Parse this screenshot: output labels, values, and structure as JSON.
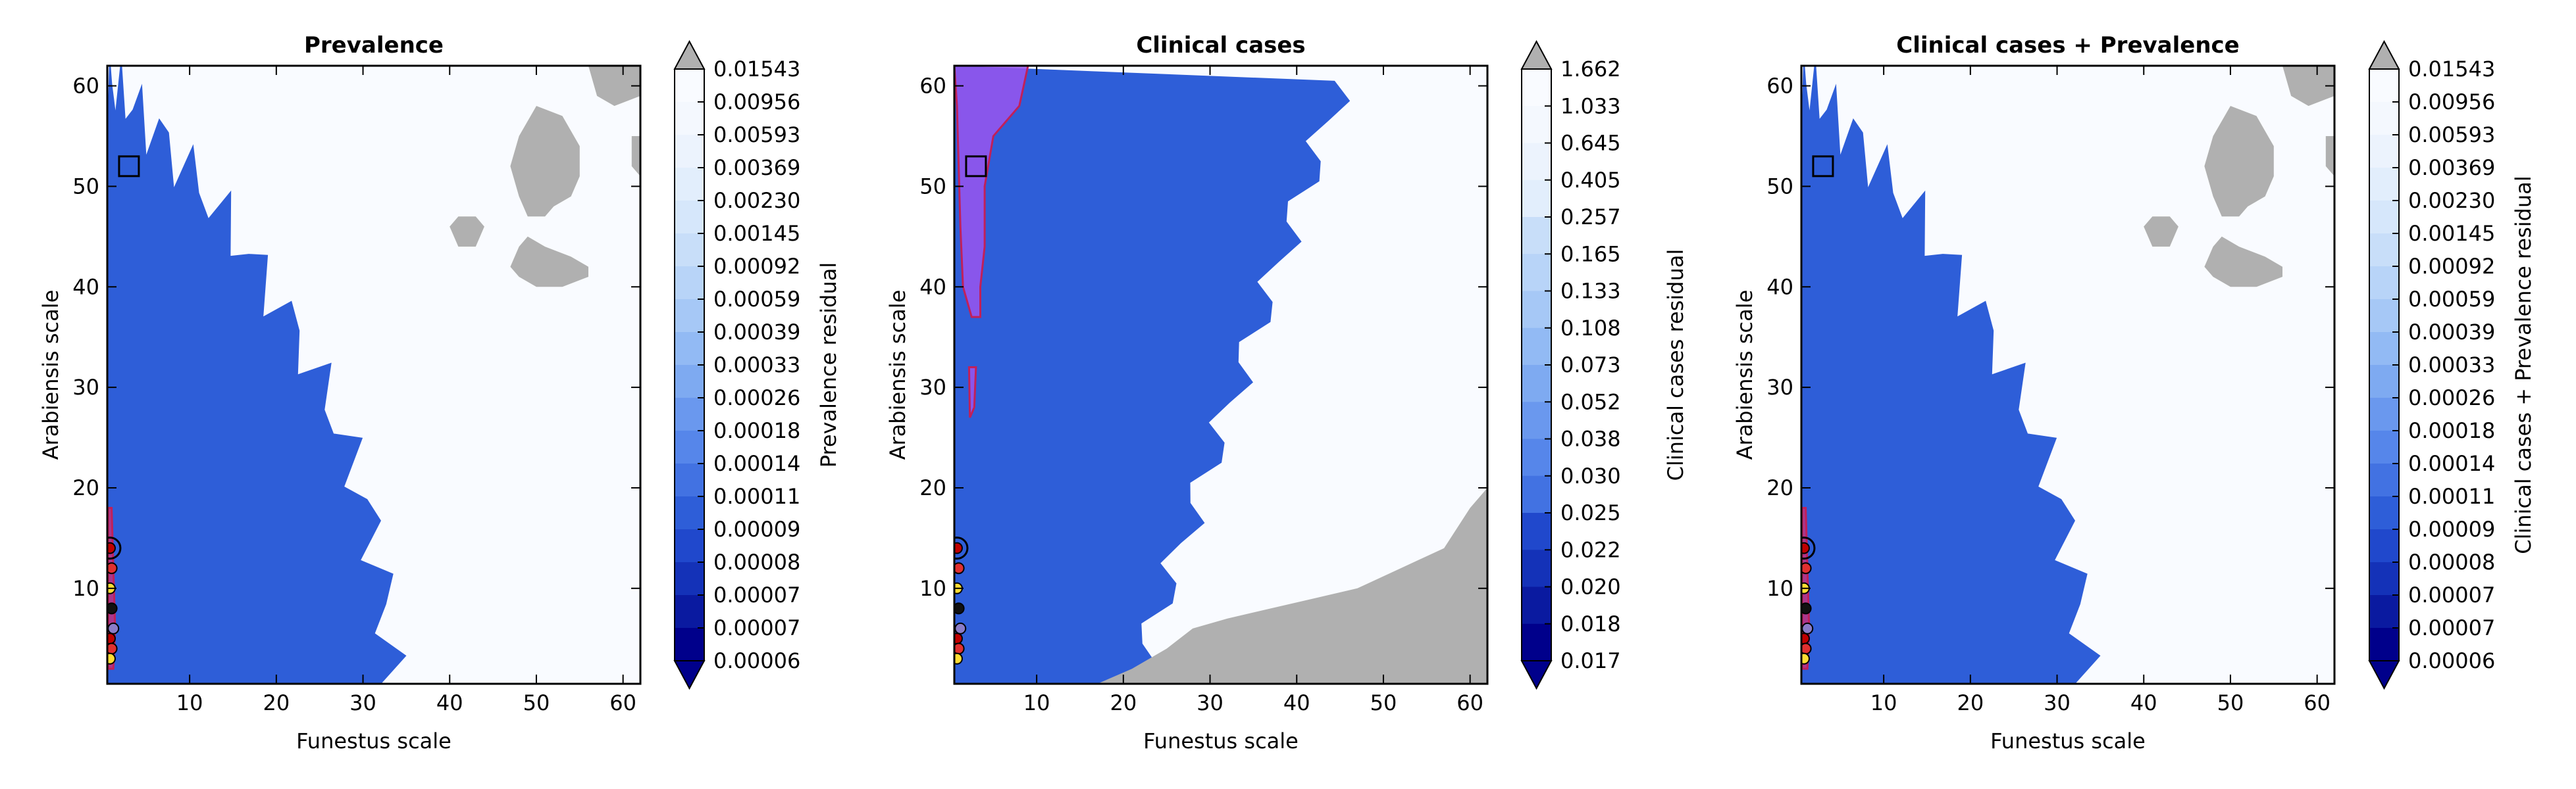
{
  "chart_data": [
    {
      "type": "contour",
      "title": "Prevalence",
      "xlabel": "Funestus scale",
      "ylabel": "Arabiensis scale",
      "xlim": [
        0.5,
        62
      ],
      "ylim": [
        0.5,
        62
      ],
      "xticks": [
        10,
        20,
        30,
        40,
        50,
        60
      ],
      "yticks": [
        10,
        20,
        30,
        40,
        50,
        60
      ],
      "colorbar": {
        "label": "Prevalence residual",
        "ticks": [
          "0.01543",
          "0.00956",
          "0.00593",
          "0.00369",
          "0.00230",
          "0.00145",
          "0.00092",
          "0.00059",
          "0.00039",
          "0.00033",
          "0.00026",
          "0.00018",
          "0.00014",
          "0.00011",
          "0.00009",
          "0.00008",
          "0.00007",
          "0.00007",
          "0.00006"
        ]
      },
      "marker_square": [
        3,
        52
      ],
      "over_max_regions": [
        {
          "color": "#b0b0b0",
          "points": [
            [
              50,
              58
            ],
            [
              53,
              57
            ],
            [
              55,
              54
            ],
            [
              55,
              51
            ],
            [
              54,
              49
            ],
            [
              52,
              48
            ],
            [
              51,
              47
            ],
            [
              49,
              47
            ],
            [
              48,
              49
            ],
            [
              47,
              52
            ],
            [
              48,
              55
            ]
          ]
        },
        {
          "color": "#b0b0b0",
          "points": [
            [
              49,
              45
            ],
            [
              51,
              44
            ],
            [
              54,
              43
            ],
            [
              56,
              42
            ],
            [
              56,
              41
            ],
            [
              53,
              40
            ],
            [
              50,
              40
            ],
            [
              48,
              41
            ],
            [
              47,
              42
            ],
            [
              48,
              44
            ]
          ]
        },
        {
          "color": "#b0b0b0",
          "points": [
            [
              40,
              46
            ],
            [
              41,
              47
            ],
            [
              43,
              47
            ],
            [
              44,
              46
            ],
            [
              43,
              44
            ],
            [
              41,
              44
            ]
          ]
        },
        {
          "color": "#b0b0b0",
          "points": [
            [
              56,
              62
            ],
            [
              62,
              62
            ],
            [
              62,
              59
            ],
            [
              59,
              58
            ],
            [
              57,
              59
            ]
          ]
        },
        {
          "color": "#b0b0b0",
          "points": [
            [
              61,
              55
            ],
            [
              62,
              55
            ],
            [
              62,
              51
            ],
            [
              61,
              52
            ]
          ]
        }
      ],
      "highlight_regions": [
        {
          "color": "#c03080",
          "points": [
            [
              0.6,
              18
            ],
            [
              1,
              18
            ],
            [
              1.2,
              12
            ],
            [
              1.4,
              6
            ],
            [
              1.2,
              2
            ],
            [
              0.6,
              2
            ]
          ]
        }
      ],
      "points": [
        [
          0.8,
          14
        ],
        [
          1,
          12
        ],
        [
          0.8,
          10
        ],
        [
          1,
          8
        ],
        [
          1.2,
          6
        ],
        [
          0.8,
          5
        ],
        [
          1,
          4
        ],
        [
          0.8,
          3
        ]
      ]
    },
    {
      "type": "contour",
      "title": "Clinical cases",
      "xlabel": "Funestus scale",
      "ylabel": "Arabiensis scale",
      "xlim": [
        0.5,
        62
      ],
      "ylim": [
        0.5,
        62
      ],
      "xticks": [
        10,
        20,
        30,
        40,
        50,
        60
      ],
      "yticks": [
        10,
        20,
        30,
        40,
        50,
        60
      ],
      "colorbar": {
        "label": "Clinical cases residual",
        "ticks": [
          "1.662",
          "1.033",
          "0.645",
          "0.405",
          "0.257",
          "0.165",
          "0.133",
          "0.108",
          "0.073",
          "0.052",
          "0.038",
          "0.030",
          "0.025",
          "0.022",
          "0.020",
          "0.018",
          "0.017"
        ]
      },
      "marker_square": [
        3,
        52
      ],
      "over_max_regions": [
        {
          "color": "#b0b0b0",
          "points": [
            [
              17,
              0.5
            ],
            [
              62,
              0.5
            ],
            [
              62,
              20
            ],
            [
              60,
              18
            ],
            [
              57,
              14
            ],
            [
              52,
              12
            ],
            [
              47,
              10
            ],
            [
              42,
              9
            ],
            [
              37,
              8
            ],
            [
              32,
              7
            ],
            [
              28,
              6
            ],
            [
              25,
              4
            ],
            [
              21,
              2
            ]
          ]
        }
      ],
      "highlight_regions": [
        {
          "color": "#9955ee",
          "points": [
            [
              0.5,
              62
            ],
            [
              9,
              62
            ],
            [
              8,
              58
            ],
            [
              5,
              55
            ],
            [
              4,
              50
            ],
            [
              4,
              44
            ],
            [
              3.5,
              40
            ],
            [
              3.5,
              37
            ],
            [
              2.5,
              37
            ],
            [
              1.5,
              40
            ],
            [
              1.2,
              46
            ],
            [
              1,
              52
            ],
            [
              0.8,
              58
            ]
          ]
        },
        {
          "color": "#9955ee",
          "points": [
            [
              2.2,
              32
            ],
            [
              3,
              32
            ],
            [
              2.8,
              28
            ],
            [
              2.3,
              27
            ]
          ]
        }
      ],
      "points": [
        [
          0.8,
          14
        ],
        [
          1,
          12
        ],
        [
          0.8,
          10
        ],
        [
          1,
          8
        ],
        [
          1.2,
          6
        ],
        [
          0.8,
          5
        ],
        [
          1,
          4
        ],
        [
          0.8,
          3
        ]
      ]
    },
    {
      "type": "contour",
      "title": "Clinical cases + Prevalence",
      "xlabel": "Funestus scale",
      "ylabel": "Arabiensis scale",
      "xlim": [
        0.5,
        62
      ],
      "ylim": [
        0.5,
        62
      ],
      "xticks": [
        10,
        20,
        30,
        40,
        50,
        60
      ],
      "yticks": [
        10,
        20,
        30,
        40,
        50,
        60
      ],
      "colorbar": {
        "label": "Clinical cases + Prevalence residual",
        "ticks": [
          "0.01543",
          "0.00956",
          "0.00593",
          "0.00369",
          "0.00230",
          "0.00145",
          "0.00092",
          "0.00059",
          "0.00039",
          "0.00033",
          "0.00026",
          "0.00018",
          "0.00014",
          "0.00011",
          "0.00009",
          "0.00008",
          "0.00007",
          "0.00007",
          "0.00006"
        ]
      },
      "marker_square": [
        3,
        52
      ],
      "over_max_regions": [
        {
          "color": "#b0b0b0",
          "points": [
            [
              50,
              58
            ],
            [
              53,
              57
            ],
            [
              55,
              54
            ],
            [
              55,
              51
            ],
            [
              54,
              49
            ],
            [
              52,
              48
            ],
            [
              51,
              47
            ],
            [
              49,
              47
            ],
            [
              48,
              49
            ],
            [
              47,
              52
            ],
            [
              48,
              55
            ]
          ]
        },
        {
          "color": "#b0b0b0",
          "points": [
            [
              49,
              45
            ],
            [
              51,
              44
            ],
            [
              54,
              43
            ],
            [
              56,
              42
            ],
            [
              56,
              41
            ],
            [
              53,
              40
            ],
            [
              50,
              40
            ],
            [
              48,
              41
            ],
            [
              47,
              42
            ],
            [
              48,
              44
            ]
          ]
        },
        {
          "color": "#b0b0b0",
          "points": [
            [
              40,
              46
            ],
            [
              41,
              47
            ],
            [
              43,
              47
            ],
            [
              44,
              46
            ],
            [
              43,
              44
            ],
            [
              41,
              44
            ]
          ]
        },
        {
          "color": "#b0b0b0",
          "points": [
            [
              56,
              62
            ],
            [
              62,
              62
            ],
            [
              62,
              59
            ],
            [
              59,
              58
            ],
            [
              57,
              59
            ]
          ]
        },
        {
          "color": "#b0b0b0",
          "points": [
            [
              61,
              55
            ],
            [
              62,
              55
            ],
            [
              62,
              51
            ],
            [
              61,
              52
            ]
          ]
        }
      ],
      "highlight_regions": [
        {
          "color": "#c03080",
          "points": [
            [
              0.6,
              18
            ],
            [
              1,
              18
            ],
            [
              1.2,
              12
            ],
            [
              1.4,
              6
            ],
            [
              1.2,
              2
            ],
            [
              0.6,
              2
            ]
          ]
        }
      ],
      "points": [
        [
          0.8,
          14
        ],
        [
          1,
          12
        ],
        [
          0.8,
          10
        ],
        [
          1,
          8
        ],
        [
          1.2,
          6
        ],
        [
          0.8,
          5
        ],
        [
          1,
          4
        ],
        [
          0.8,
          3
        ]
      ]
    }
  ],
  "palette": {
    "colormap": [
      "#00008b",
      "#0a1aa0",
      "#1432b8",
      "#2048cc",
      "#2e5ed8",
      "#4272e2",
      "#5686ea",
      "#6a98ee",
      "#7eaaf1",
      "#92baf4",
      "#a6c8f6",
      "#b8d4f8",
      "#c8def9",
      "#d6e7fb",
      "#e2eefc",
      "#ecf3fd",
      "#f4f8fe",
      "#f9fbff"
    ],
    "over": "#b0b0b0",
    "under": "#00008b",
    "point_colors": [
      "#c00000",
      "#e03030",
      "#ffdd33",
      "#111111",
      "#8a7cc8"
    ]
  }
}
